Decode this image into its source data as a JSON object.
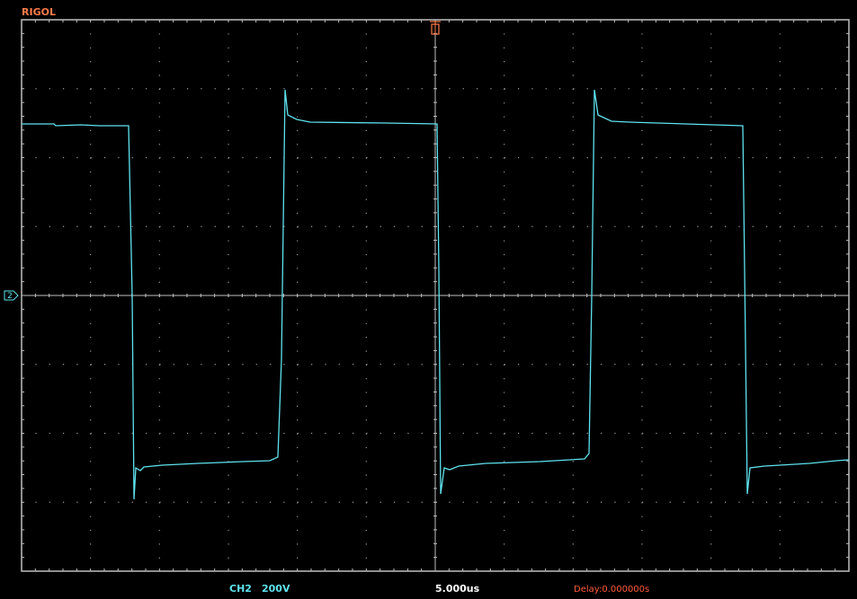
{
  "header": {
    "brand": "RIGOL"
  },
  "channel_marker": "2",
  "status_bar": {
    "channel": "CH2",
    "scale": "200V",
    "timebase": "5.000us",
    "delay": "Delay:0.000000s"
  }
}
